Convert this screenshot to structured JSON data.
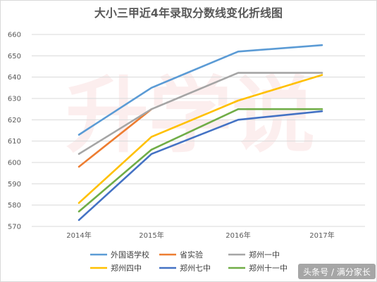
{
  "chart_data": {
    "type": "line",
    "title": "大小三甲近4年录取分数线变化折线图",
    "categories": [
      "2014年",
      "2015年",
      "2016年",
      "2017年"
    ],
    "ylim": [
      570,
      660
    ],
    "yticks": [
      "570",
      "580",
      "590",
      "600",
      "610",
      "620",
      "630",
      "640",
      "650",
      "660"
    ],
    "grid": true,
    "legend_position": "bottom",
    "series": [
      {
        "name": "外国语学校",
        "color": "#5B9BD5",
        "values": [
          613,
          635,
          652,
          655
        ]
      },
      {
        "name": "省实验",
        "color": "#ED7D31",
        "values": [
          598,
          625,
          null,
          null
        ]
      },
      {
        "name": "郑州一中",
        "color": "#A5A5A5",
        "values": [
          604,
          625,
          642,
          642
        ]
      },
      {
        "name": "郑州四中",
        "color": "#FFC000",
        "values": [
          581,
          612,
          629,
          641
        ]
      },
      {
        "name": "郑州七中",
        "color": "#4472C4",
        "values": [
          573,
          604,
          620,
          624
        ]
      },
      {
        "name": "郑州十一中",
        "color": "#70AD47",
        "values": [
          577,
          606,
          625,
          625
        ]
      }
    ]
  },
  "watermark": {
    "background_text": "升学说",
    "credit": "头条号 / 满分家长"
  }
}
